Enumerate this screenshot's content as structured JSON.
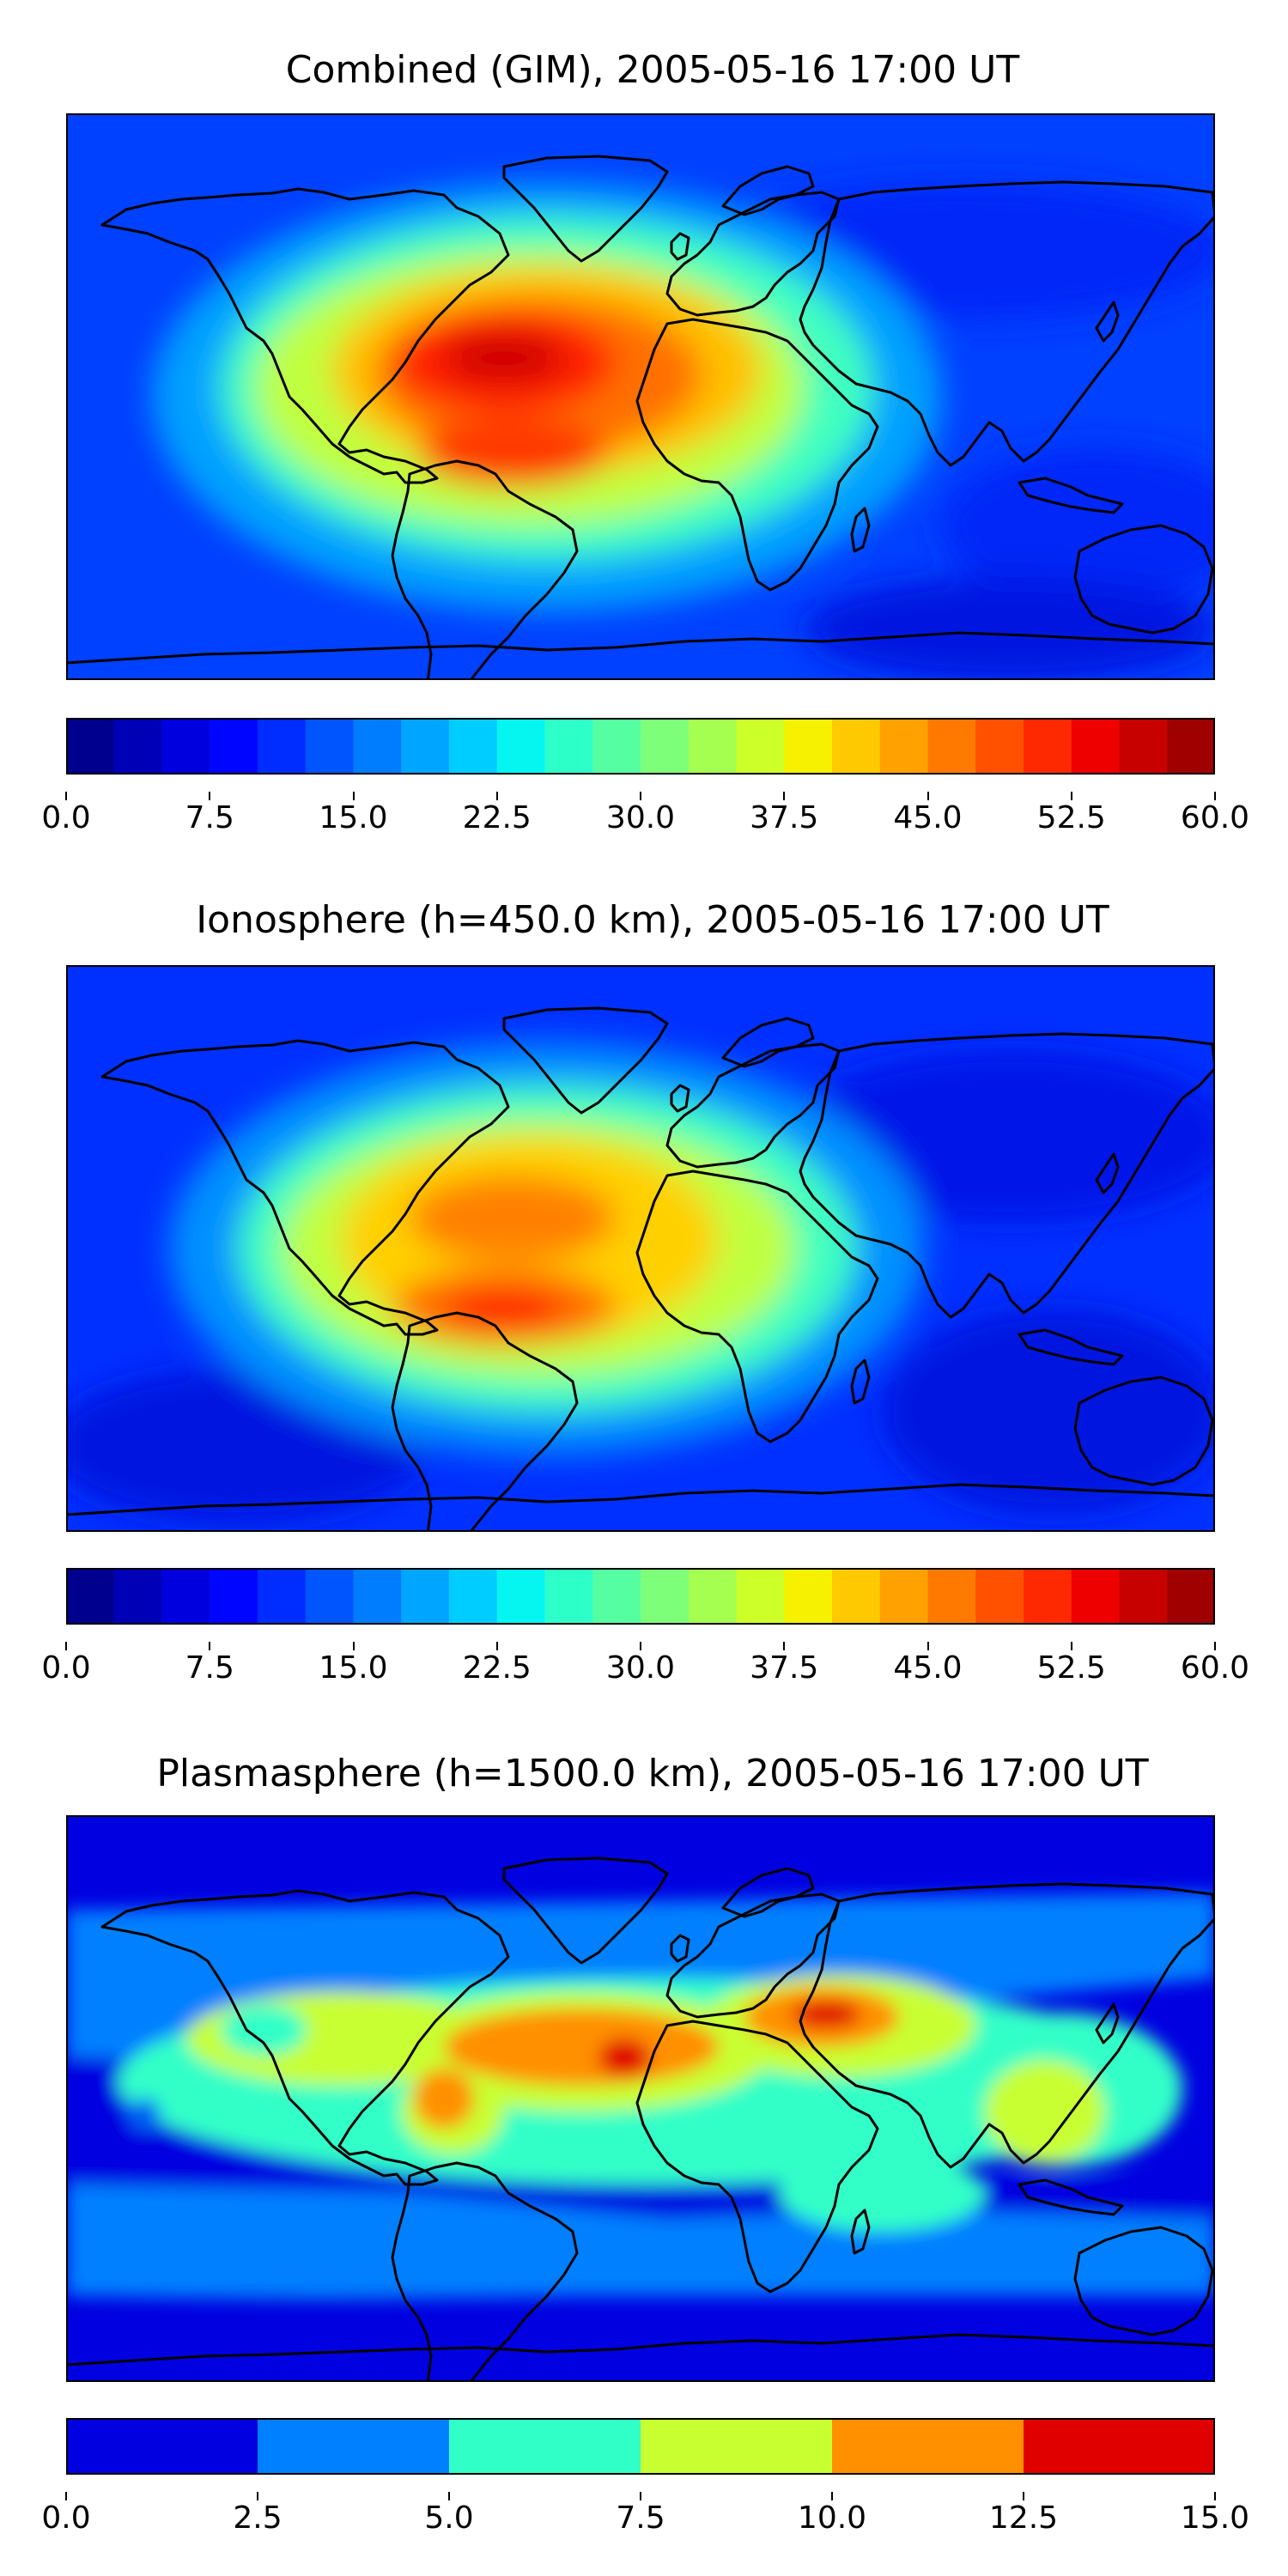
{
  "charts": [
    {
      "title": "Combined (GIM), 2005-05-16 17:00 UT",
      "colorbar": {
        "min": 0.0,
        "max": 60.0,
        "levels": 24,
        "colors": [
          "#00008f",
          "#0000b7",
          "#0000df",
          "#0005ff",
          "#002dff",
          "#0055ff",
          "#007dff",
          "#00a5ff",
          "#00cdff",
          "#05f5f1",
          "#2dffc9",
          "#55ffa1",
          "#7dff79",
          "#a5ff51",
          "#cdff29",
          "#f5f101",
          "#ffc900",
          "#ffa100",
          "#ff7900",
          "#ff5100",
          "#ff2900",
          "#ef0000",
          "#c70000",
          "#9f0000"
        ],
        "ticks": [
          "0.0",
          "7.5",
          "15.0",
          "22.5",
          "30.0",
          "37.5",
          "45.0",
          "52.5",
          "60.0"
        ]
      }
    },
    {
      "title": "Ionosphere  (h=450.0 km), 2005-05-16 17:00 UT",
      "colorbar": {
        "min": 0.0,
        "max": 60.0,
        "levels": 24,
        "colors": [
          "#00008f",
          "#0000b7",
          "#0000df",
          "#0005ff",
          "#002dff",
          "#0055ff",
          "#007dff",
          "#00a5ff",
          "#00cdff",
          "#05f5f1",
          "#2dffc9",
          "#55ffa1",
          "#7dff79",
          "#a5ff51",
          "#cdff29",
          "#f5f101",
          "#ffc900",
          "#ffa100",
          "#ff7900",
          "#ff5100",
          "#ff2900",
          "#ef0000",
          "#c70000",
          "#9f0000"
        ],
        "ticks": [
          "0.0",
          "7.5",
          "15.0",
          "22.5",
          "30.0",
          "37.5",
          "45.0",
          "52.5",
          "60.0"
        ]
      }
    },
    {
      "title": "Plasmasphere (h=1500.0 km), 2005-05-16 17:00 UT",
      "colorbar": {
        "min": 0.0,
        "max": 15.0,
        "levels": 6,
        "colors": [
          "#0000e0",
          "#0080ff",
          "#30ffc8",
          "#c8ff30",
          "#ff9000",
          "#e00000"
        ],
        "ticks": [
          "0.0",
          "2.5",
          "5.0",
          "7.5",
          "10.0",
          "12.5",
          "15.0"
        ]
      }
    }
  ],
  "chart_data": [
    {
      "type": "heatmap",
      "title": "Combined (GIM), 2005-05-16 17:00 UT",
      "colorbar_range": [
        0.0,
        60.0
      ],
      "colorbar_ticks": [
        0.0,
        7.5,
        15.0,
        22.5,
        30.0,
        37.5,
        45.0,
        52.5,
        60.0
      ],
      "grid": false,
      "maxima": [
        {
          "lon": -40,
          "lat": 12,
          "value": 55
        },
        {
          "lon": -55,
          "lat": -15,
          "value": 52
        },
        {
          "lon": -10,
          "lat": 10,
          "value": 50
        }
      ]
    },
    {
      "type": "heatmap",
      "title": "Ionosphere  (h=450.0 km), 2005-05-16 17:00 UT",
      "colorbar_range": [
        0.0,
        60.0
      ],
      "colorbar_ticks": [
        0.0,
        7.5,
        15.0,
        22.5,
        30.0,
        37.5,
        45.0,
        52.5,
        60.0
      ],
      "grid": false,
      "maxima": [
        {
          "lon": -42,
          "lat": 12,
          "value": 47
        },
        {
          "lon": -52,
          "lat": -15,
          "value": 50
        }
      ]
    },
    {
      "type": "heatmap",
      "title": "Plasmasphere (h=1500.0 km), 2005-05-16 17:00 UT",
      "colorbar_range": [
        0.0,
        15.0
      ],
      "colorbar_ticks": [
        0.0,
        2.5,
        5.0,
        7.5,
        10.0,
        12.5,
        15.0
      ],
      "grid": false,
      "maxima": [
        {
          "lon": -7,
          "lat": 12,
          "value": 13
        },
        {
          "lon": 45,
          "lat": 25,
          "value": 13.5
        }
      ]
    }
  ]
}
